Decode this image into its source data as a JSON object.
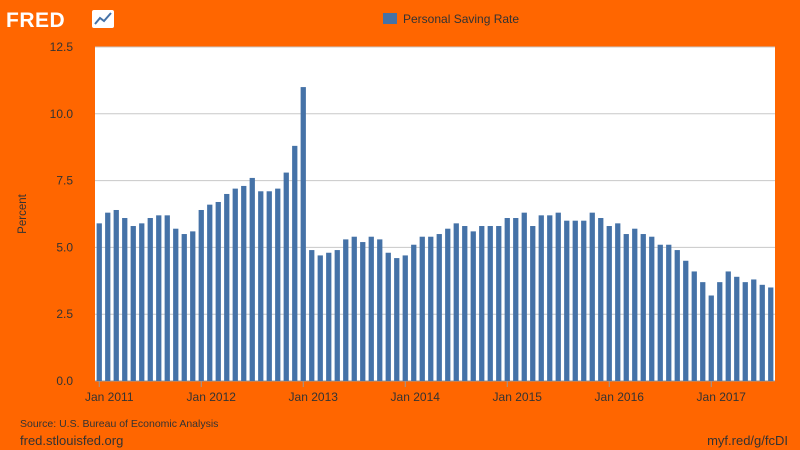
{
  "branding": {
    "logo_text": "FRED",
    "logo_icon": "line-chart-icon",
    "site_url": "fred.stlouisfed.org",
    "short_url": "myf.red/g/fcDI"
  },
  "colors": {
    "background": "#FF6600",
    "plot_background": "#FFFFFF",
    "bar": "#4572A7",
    "grid": "#C8C8C8"
  },
  "chart_data": {
    "type": "bar",
    "title": "",
    "legend": [
      {
        "name": "Personal Saving Rate",
        "color": "#4572A7"
      }
    ],
    "legend_position": "top-center",
    "ylabel": "Percent",
    "xlabel": "",
    "source": "Source: U.S. Bureau of Economic Analysis",
    "ylim": [
      0,
      12.5
    ],
    "yticks": [
      "0.0",
      "2.5",
      "5.0",
      "7.5",
      "10.0",
      "12.5"
    ],
    "grid": true,
    "xticks": [
      "Jan 2011",
      "Jan 2012",
      "Jan 2013",
      "Jan 2014",
      "Jan 2015",
      "Jan 2016",
      "Jan 2017"
    ],
    "x_start": "2011-01",
    "series": [
      {
        "name": "Personal Saving Rate",
        "values": [
          5.9,
          6.3,
          6.4,
          6.1,
          5.8,
          5.9,
          6.1,
          6.2,
          6.2,
          5.7,
          5.5,
          5.6,
          6.4,
          6.6,
          6.7,
          7.0,
          7.2,
          7.3,
          7.6,
          7.1,
          7.1,
          7.2,
          7.8,
          8.8,
          11.0,
          4.9,
          4.7,
          4.8,
          4.9,
          5.3,
          5.4,
          5.2,
          5.4,
          5.3,
          4.8,
          4.6,
          4.7,
          5.1,
          5.4,
          5.4,
          5.5,
          5.7,
          5.9,
          5.8,
          5.6,
          5.8,
          5.8,
          5.8,
          6.1,
          6.1,
          6.3,
          5.8,
          6.2,
          6.2,
          6.3,
          6.0,
          6.0,
          6.0,
          6.3,
          6.1,
          5.8,
          5.9,
          5.5,
          5.7,
          5.5,
          5.4,
          5.1,
          5.1,
          4.9,
          4.5,
          4.1,
          3.7,
          3.2,
          3.7,
          4.1,
          3.9,
          3.7,
          3.8,
          3.6,
          3.5
        ]
      }
    ]
  }
}
